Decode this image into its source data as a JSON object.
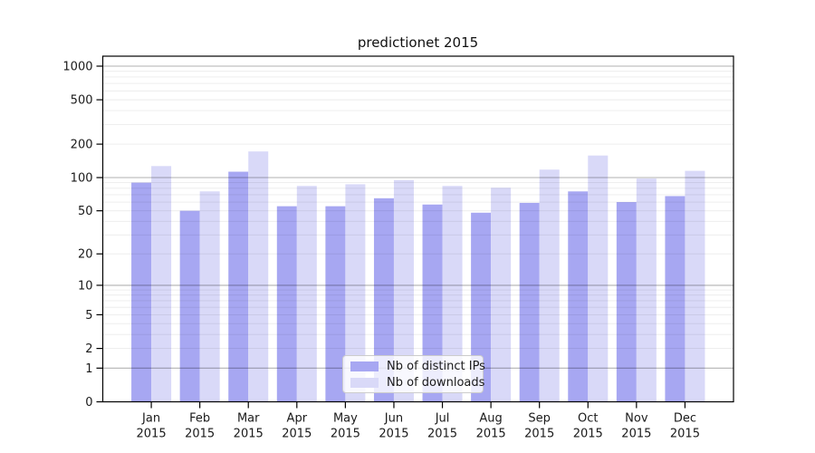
{
  "chart_data": {
    "type": "bar",
    "title": "predictionet 2015",
    "categories": [
      "Jan",
      "Feb",
      "Mar",
      "Apr",
      "May",
      "Jun",
      "Jul",
      "Aug",
      "Sep",
      "Oct",
      "Nov",
      "Dec"
    ],
    "x_year_label": "2015",
    "series": [
      {
        "name": "Nb of distinct IPs",
        "color": "#a7a7f2",
        "values": [
          90,
          50,
          113,
          55,
          55,
          65,
          57,
          48,
          59,
          75,
          60,
          68
        ]
      },
      {
        "name": "Nb of downloads",
        "color": "#d9d9f8",
        "values": [
          127,
          75,
          172,
          84,
          87,
          95,
          84,
          81,
          118,
          158,
          98,
          115
        ]
      }
    ],
    "xlabel": "",
    "ylabel": "",
    "yscale": "log1p",
    "ylim": [
      0,
      1228
    ],
    "yticks": [
      0,
      1,
      2,
      5,
      10,
      20,
      50,
      100,
      200,
      500,
      1000
    ],
    "major_gridlines": [
      1,
      10,
      100,
      1000
    ],
    "minor_gridlines": [
      2,
      3,
      4,
      5,
      6,
      7,
      8,
      9,
      20,
      30,
      40,
      50,
      60,
      70,
      80,
      90,
      200,
      300,
      400,
      500,
      600,
      700,
      800,
      900
    ],
    "grid": true,
    "legend": {
      "position": "lower center",
      "labels": [
        "Nb of distinct IPs",
        "Nb of downloads"
      ]
    }
  },
  "colors": {
    "background": "#ffffff",
    "axis": "#000000",
    "text": "#1a1a1a",
    "major_grid": "rgba(0,0,0,0.30)",
    "minor_grid": "rgba(0,0,0,0.08)"
  }
}
